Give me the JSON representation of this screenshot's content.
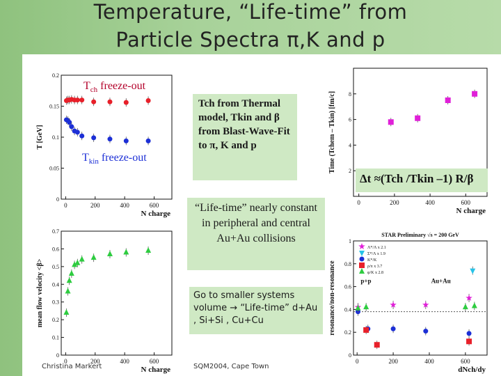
{
  "slide": {
    "title_line1": "Temperature, “Life-time” from",
    "title_line2": "Particle Spectra π,K and p",
    "footer_author": "Christina Markert",
    "footer_conf": "SQM2004, Cape Town"
  },
  "labels": {
    "tch_sub": "ch",
    "tch_text": "freeze-out",
    "tkin_sub": "kin",
    "tkin_text": "freeze-out",
    "thermal_text": "Tch from Thermal model, Tkin and β from Blast-Wave-Fit to π, K and p",
    "lifetime_text": "“Life-time” nearly constant in peripheral and central Au+Au collisions",
    "smaller_text": "Go to smaller systems volume → “Life-time” d+Au , Si+Si , Cu+Cu",
    "delta_formula": "Δt ≈(Tch /Tkin –1) R/β"
  },
  "colors": {
    "red": "#e8202a",
    "blue": "#1c2fd6",
    "green": "#2ecc40",
    "magenta": "#e020d8",
    "cyan": "#27c3e8",
    "orange": "#ffcc66",
    "panel_bg": "#cfe9c4"
  },
  "chart_data": [
    {
      "type": "scatter",
      "ylabel": "T [GeV]",
      "xlabel": "N charge",
      "xlim": [
        -30,
        720
      ],
      "ylim": [
        0,
        0.2
      ],
      "xticks": [
        0,
        200,
        400,
        600
      ],
      "yticks": [
        0,
        0.05,
        0.1,
        0.15,
        0.2
      ],
      "xtick_labels": [
        "0",
        "200",
        "400",
        "600"
      ],
      "ytick_labels": [
        "0",
        "0.05",
        "0.1",
        "0.15",
        "0.2"
      ],
      "series": [
        {
          "name": "Tch",
          "color": "red",
          "marker": "circle",
          "x": [
            5,
            15,
            25,
            40,
            60,
            80,
            110,
            190,
            300,
            410,
            560
          ],
          "y": [
            0.159,
            0.16,
            0.16,
            0.161,
            0.16,
            0.16,
            0.16,
            0.157,
            0.157,
            0.156,
            0.159
          ]
        },
        {
          "name": "Tkin",
          "color": "blue",
          "marker": "circle",
          "x": [
            5,
            15,
            25,
            40,
            60,
            80,
            110,
            190,
            300,
            410,
            560
          ],
          "y": [
            0.128,
            0.127,
            0.124,
            0.117,
            0.11,
            0.108,
            0.102,
            0.099,
            0.097,
            0.094,
            0.094
          ]
        }
      ]
    },
    {
      "type": "scatter",
      "ylabel": "Time (Tchem – Tkin) [fm/c]",
      "xlabel": "N charge",
      "xlim": [
        -30,
        720
      ],
      "ylim": [
        0,
        10
      ],
      "xticks": [
        0,
        200,
        400,
        600
      ],
      "yticks": [
        2,
        4,
        6,
        8
      ],
      "xtick_labels": [
        "0",
        "200",
        "400",
        "600"
      ],
      "ytick_labels": [
        "2",
        "4",
        "6",
        "8"
      ],
      "series": [
        {
          "color": "magenta",
          "marker": "square",
          "x": [
            180,
            330,
            500,
            650
          ],
          "y": [
            5.8,
            6.1,
            7.5,
            8.0
          ]
        }
      ]
    },
    {
      "type": "scatter",
      "ylabel": "mean flow velocity <β>",
      "xlabel": "N charge",
      "xlim": [
        -30,
        720
      ],
      "ylim": [
        0,
        0.7
      ],
      "xticks": [
        0,
        200,
        400,
        600
      ],
      "yticks": [
        0,
        0.1,
        0.2,
        0.3,
        0.4,
        0.5,
        0.6,
        0.7
      ],
      "xtick_labels": [
        "0",
        "200",
        "400",
        "600"
      ],
      "ytick_labels": [
        "0",
        "0.1",
        "0.2",
        "0.3",
        "0.4",
        "0.5",
        "0.6",
        "0.7"
      ],
      "series": [
        {
          "color": "green",
          "marker": "triangle",
          "x": [
            5,
            15,
            25,
            40,
            60,
            80,
            110,
            190,
            300,
            410,
            560
          ],
          "y": [
            0.24,
            0.36,
            0.42,
            0.46,
            0.51,
            0.52,
            0.54,
            0.55,
            0.57,
            0.58,
            0.59
          ]
        }
      ]
    },
    {
      "type": "scatter",
      "title": "STAR Preliminary √s = 200 GeV",
      "ylabel": "resonance/non-resonance",
      "xlabel": "dNch/dy",
      "xlim": [
        -20,
        720
      ],
      "ylim": [
        0,
        1
      ],
      "xticks": [
        0,
        200,
        400,
        600
      ],
      "yticks": [
        0,
        0.2,
        0.4,
        0.6,
        0.8,
        1
      ],
      "xtick_labels": [
        "0",
        "200",
        "400",
        "600"
      ],
      "ytick_labels": [
        "0",
        "0.2",
        "0.4",
        "0.6",
        "0.8",
        "1"
      ],
      "annotations": [
        "p+p",
        "Au+Au"
      ],
      "series": [
        {
          "name": "Λ*/Λ",
          "color": "magenta",
          "marker": "star",
          "note": "x 2.1",
          "x": [
            5,
            200,
            380,
            620
          ],
          "y": [
            0.42,
            0.44,
            0.44,
            0.5
          ]
        },
        {
          "name": "Σ*/Λ",
          "color": "cyan",
          "marker": "triangle-down",
          "note": "x 1.9",
          "x": [
            640
          ],
          "y": [
            0.74
          ]
        },
        {
          "name": "K*/K",
          "color": "blue",
          "marker": "circle",
          "x": [
            5,
            60,
            200,
            380,
            620
          ],
          "y": [
            0.38,
            0.23,
            0.23,
            0.21,
            0.19
          ]
        },
        {
          "name": "ρ/π",
          "color": "red",
          "marker": "square",
          "note": "x 3.7",
          "x": [
            50,
            110,
            620
          ],
          "y": [
            0.22,
            0.09,
            0.12
          ]
        },
        {
          "name": "φ/K",
          "color": "green",
          "marker": "triangle",
          "note": "x 2.8",
          "x": [
            5,
            50,
            600,
            650
          ],
          "y": [
            0.41,
            0.42,
            0.42,
            0.43
          ]
        }
      ]
    }
  ]
}
